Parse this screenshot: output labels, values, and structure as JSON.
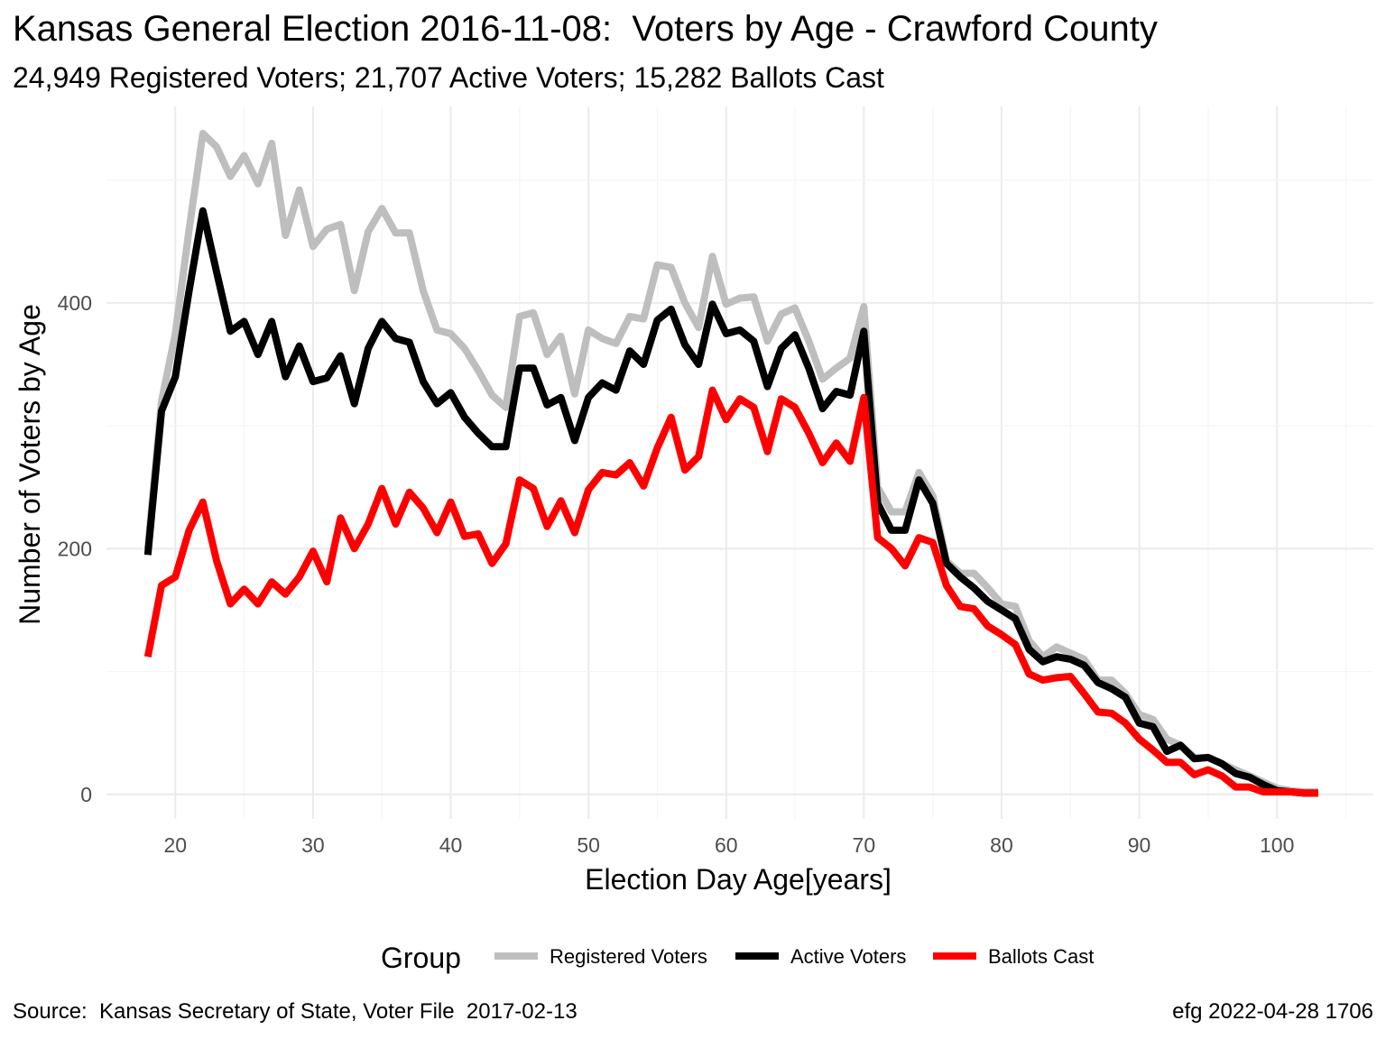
{
  "title": "Kansas General Election 2016-11-08:  Voters by Age - Crawford County",
  "subtitle": "24,949 Registered Voters; 21,707 Active Voters; 15,282 Ballots Cast",
  "caption_left": "Source:  Kansas Secretary of State, Voter File  2017-02-13",
  "caption_right": "efg 2022-04-28 1706",
  "chart_data": {
    "type": "line",
    "xlabel": "Election Day Age[years]",
    "ylabel": "Number of Voters by Age",
    "xlim": [
      15,
      107
    ],
    "ylim": [
      -20,
      560
    ],
    "x_ticks": [
      20,
      30,
      40,
      50,
      60,
      70,
      80,
      90,
      100
    ],
    "y_ticks": [
      0,
      200,
      400
    ],
    "grid": true,
    "legend_title": "Group",
    "legend_position": "bottom",
    "x": [
      18,
      19,
      20,
      21,
      22,
      23,
      24,
      25,
      26,
      27,
      28,
      29,
      30,
      31,
      32,
      33,
      34,
      35,
      36,
      37,
      38,
      39,
      40,
      41,
      42,
      43,
      44,
      45,
      46,
      47,
      48,
      49,
      50,
      51,
      52,
      53,
      54,
      55,
      56,
      57,
      58,
      59,
      60,
      61,
      62,
      63,
      64,
      65,
      66,
      67,
      68,
      69,
      70,
      71,
      72,
      73,
      74,
      75,
      76,
      77,
      78,
      79,
      80,
      81,
      82,
      83,
      84,
      85,
      86,
      87,
      88,
      89,
      90,
      91,
      92,
      93,
      94,
      95,
      96,
      97,
      98,
      99,
      100,
      101,
      102,
      103
    ],
    "series": [
      {
        "name": "Registered Voters",
        "color": "#bebebe",
        "values": [
          200,
          320,
          375,
          460,
          538,
          527,
          503,
          520,
          497,
          530,
          455,
          492,
          446,
          460,
          464,
          410,
          458,
          477,
          457,
          457,
          410,
          378,
          375,
          363,
          345,
          325,
          315,
          389,
          392,
          358,
          373,
          326,
          378,
          371,
          367,
          389,
          387,
          431,
          429,
          400,
          380,
          438,
          399,
          404,
          405,
          369,
          391,
          396,
          369,
          338,
          347,
          355,
          397,
          250,
          230,
          230,
          262,
          243,
          190,
          180,
          180,
          168,
          155,
          153,
          125,
          112,
          120,
          115,
          110,
          93,
          93,
          82,
          65,
          61,
          45,
          40,
          30,
          30,
          25,
          20,
          15,
          10,
          5,
          3,
          2,
          2
        ]
      },
      {
        "name": "Active Voters",
        "color": "#000000",
        "values": [
          195,
          312,
          340,
          410,
          475,
          425,
          377,
          385,
          358,
          385,
          340,
          365,
          336,
          339,
          357,
          318,
          363,
          385,
          371,
          368,
          336,
          318,
          327,
          307,
          294,
          283,
          283,
          347,
          347,
          317,
          323,
          288,
          323,
          335,
          329,
          361,
          350,
          386,
          395,
          366,
          350,
          399,
          375,
          378,
          369,
          332,
          363,
          374,
          347,
          314,
          328,
          325,
          377,
          237,
          215,
          215,
          256,
          237,
          188,
          177,
          168,
          157,
          150,
          143,
          118,
          108,
          112,
          110,
          105,
          91,
          86,
          79,
          58,
          55,
          35,
          40,
          29,
          30,
          25,
          17,
          14,
          8,
          3,
          2,
          1,
          1
        ]
      },
      {
        "name": "Ballots Cast",
        "color": "#ff0000",
        "values": [
          112,
          170,
          177,
          215,
          238,
          190,
          155,
          167,
          155,
          173,
          163,
          177,
          198,
          173,
          225,
          200,
          220,
          249,
          220,
          246,
          233,
          213,
          238,
          210,
          212,
          188,
          204,
          256,
          249,
          218,
          239,
          213,
          248,
          262,
          260,
          270,
          251,
          282,
          307,
          264,
          275,
          329,
          305,
          322,
          315,
          279,
          322,
          315,
          294,
          270,
          286,
          271,
          323,
          209,
          200,
          186,
          209,
          205,
          170,
          153,
          151,
          137,
          130,
          122,
          98,
          93,
          95,
          96,
          82,
          67,
          66,
          58,
          45,
          36,
          26,
          26,
          16,
          20,
          15,
          6,
          6,
          2,
          2,
          2,
          1,
          1
        ]
      }
    ]
  }
}
